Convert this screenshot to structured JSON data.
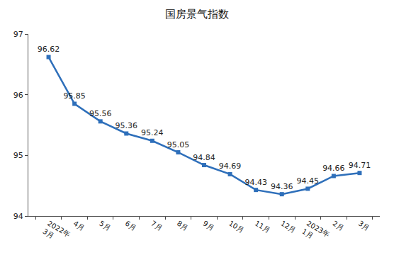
{
  "chart_data": {
    "type": "line",
    "title": "国房景气指数",
    "categories": [
      "2022年\n3月",
      "4月",
      "5月",
      "6月",
      "7月",
      "8月",
      "9月",
      "10月",
      "11月",
      "12月",
      "2023年\n1月",
      "2月",
      "3月"
    ],
    "values": [
      96.62,
      95.85,
      95.56,
      95.36,
      95.24,
      95.05,
      94.84,
      94.69,
      94.43,
      94.36,
      94.45,
      94.66,
      94.71
    ],
    "color": "#2e6fba",
    "marker": "square",
    "ylim": [
      94,
      97
    ],
    "yticks": [
      94,
      95,
      96,
      97
    ],
    "grid": false,
    "data_labels": true
  }
}
